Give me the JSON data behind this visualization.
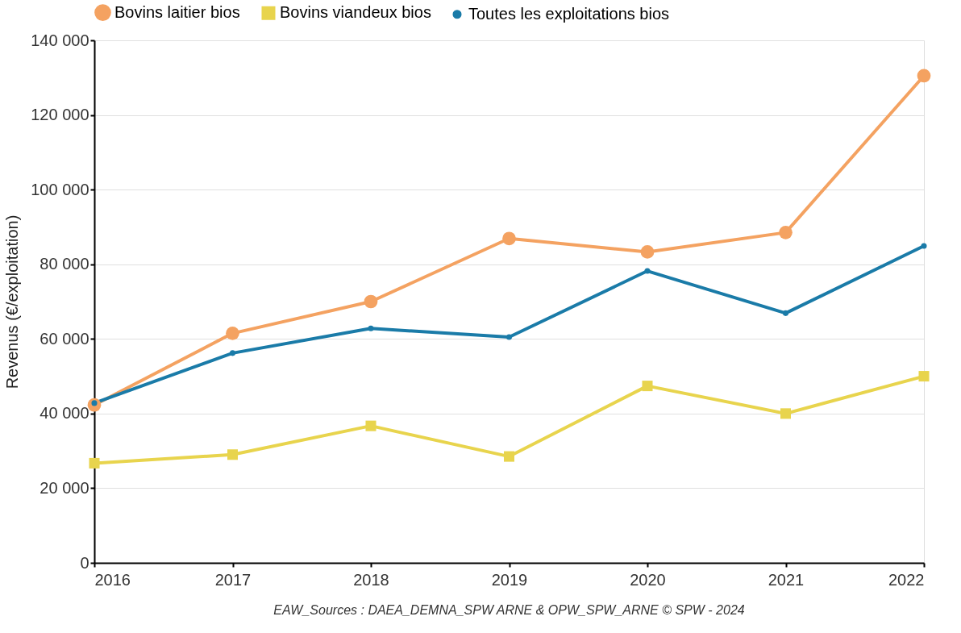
{
  "chart_data": {
    "type": "line",
    "x": [
      2016,
      2017,
      2018,
      2019,
      2020,
      2021,
      2022
    ],
    "xlim": [
      2016,
      2022
    ],
    "xticks": [
      2016,
      2017,
      2018,
      2019,
      2020,
      2021,
      2022
    ],
    "ylabel": "Revenus (€/exploitation)",
    "ylim": [
      0,
      140000
    ],
    "yticks": [
      0,
      {
        "value": 20000,
        "label": "20 000"
      },
      {
        "value": 40000,
        "label": "40 000"
      },
      {
        "value": 60000,
        "label": "60 000"
      },
      {
        "value": 80000,
        "label": "80 000"
      },
      {
        "value": 100000,
        "label": "100 000"
      },
      {
        "value": 120000,
        "label": "120 000"
      },
      {
        "value": 140000,
        "label": "140 000"
      }
    ],
    "series": [
      {
        "name": "Bovins laitier bios",
        "color": "#f4a261",
        "marker": "circle",
        "values": [
          42300,
          61500,
          70000,
          86900,
          83300,
          88500,
          130500
        ]
      },
      {
        "name": "Bovins viandeux bios",
        "color": "#e8d44d",
        "marker": "square",
        "values": [
          26700,
          29000,
          36700,
          28500,
          47400,
          40000,
          50000
        ]
      },
      {
        "name": "Toutes les exploitations bios",
        "color": "#1a7ba8",
        "marker": "circle",
        "values": [
          42800,
          56200,
          62800,
          60500,
          78200,
          66900,
          84900
        ]
      }
    ],
    "grid": "y",
    "legend": "top",
    "line_style": "solid",
    "annotations": [
      "EAW_Sources : DAEA_DEMNA_SPW ARNE & OPW_SPW_ARNE      © SPW - 2024"
    ]
  }
}
